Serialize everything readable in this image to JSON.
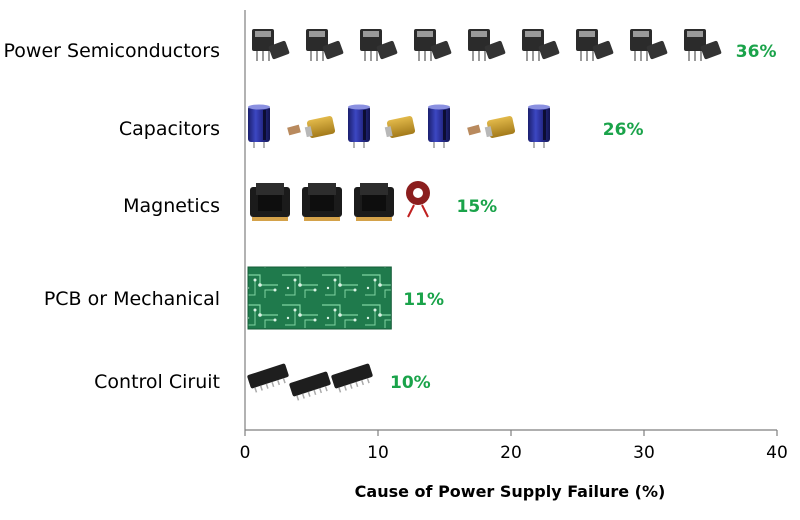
{
  "chart_data": {
    "type": "bar",
    "orientation": "horizontal",
    "categories": [
      "Power Semiconductors",
      "Capacitors",
      "Magnetics",
      "PCB or Mechanical",
      "Control Ciruit"
    ],
    "values": [
      36,
      26,
      15,
      11,
      10
    ],
    "value_labels": [
      "36%",
      "26%",
      "15%",
      "11%",
      "10%"
    ],
    "bar_icons": [
      "transistor-icon",
      "capacitor-icon",
      "inductor-icon",
      "circuit-board-icon",
      "ic-chip-icon"
    ],
    "xlabel": "Cause of Power Supply Failure (%)",
    "ylabel": "",
    "xlim": [
      0,
      40
    ],
    "xticks": [
      0,
      10,
      20,
      30,
      40
    ],
    "grid": false,
    "label_color": "#1aa34a"
  }
}
